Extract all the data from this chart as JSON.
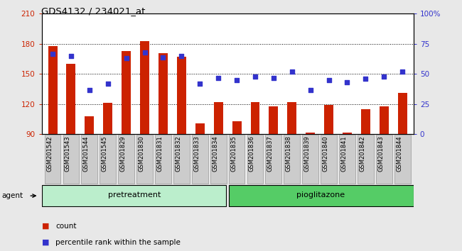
{
  "title": "GDS4132 / 234021_at",
  "categories": [
    "GSM201542",
    "GSM201543",
    "GSM201544",
    "GSM201545",
    "GSM201829",
    "GSM201830",
    "GSM201831",
    "GSM201832",
    "GSM201833",
    "GSM201834",
    "GSM201835",
    "GSM201836",
    "GSM201837",
    "GSM201838",
    "GSM201839",
    "GSM201840",
    "GSM201841",
    "GSM201842",
    "GSM201843",
    "GSM201844"
  ],
  "bar_values": [
    178,
    160,
    108,
    121,
    173,
    183,
    171,
    167,
    101,
    122,
    103,
    122,
    118,
    122,
    92,
    119,
    92,
    115,
    118,
    131
  ],
  "dot_values_pct": [
    67,
    65,
    37,
    42,
    63,
    68,
    64,
    65,
    42,
    47,
    45,
    48,
    47,
    52,
    37,
    45,
    43,
    46,
    48,
    52
  ],
  "bar_color": "#cc2200",
  "dot_color": "#3333cc",
  "ylim_left": [
    90,
    210
  ],
  "ylim_right": [
    0,
    100
  ],
  "yticks_left": [
    90,
    120,
    150,
    180,
    210
  ],
  "yticks_right": [
    0,
    25,
    50,
    75,
    100
  ],
  "yticklabels_right": [
    "0",
    "25",
    "50",
    "75",
    "100%"
  ],
  "group1_label": "pretreatment",
  "group2_label": "pioglitazone",
  "group1_count": 10,
  "group2_count": 10,
  "agent_label": "agent",
  "legend_count_label": "count",
  "legend_pct_label": "percentile rank within the sample",
  "fig_bg_color": "#e8e8e8",
  "plot_bg_color": "#ffffff",
  "group1_color": "#bbeecc",
  "group2_color": "#55cc66",
  "tick_bg_color": "#cccccc",
  "tick_border_color": "#999999",
  "title_fontsize": 9.5,
  "bar_label_fontsize": 6.0,
  "ytick_fontsize": 7.5,
  "legend_fontsize": 7.5,
  "group_fontsize": 8.0,
  "agent_fontsize": 7.5,
  "hgrid_color": "#000000",
  "hgrid_lw": 0.7,
  "bar_width": 0.5
}
